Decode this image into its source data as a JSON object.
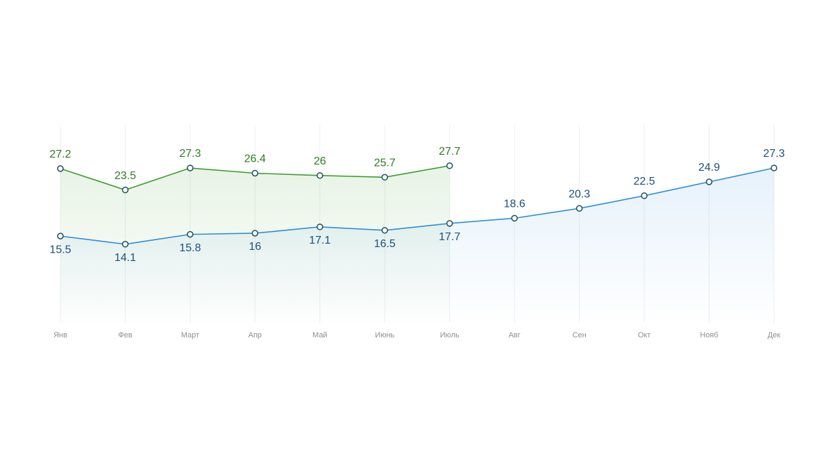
{
  "chart_data": {
    "type": "line",
    "categories": [
      "Янв",
      "Фев",
      "Март",
      "Апр",
      "Май",
      "Июнь",
      "Июль",
      "Авг",
      "Сен",
      "Окт",
      "Нояб",
      "Дек"
    ],
    "series": [
      {
        "name": null,
        "color": "#3a9e2a",
        "label_color": "#2f7a22",
        "values": [
          27.2,
          23.5,
          27.3,
          26.4,
          26,
          25.7,
          27.7,
          null,
          null,
          null,
          null,
          null
        ]
      },
      {
        "name": null,
        "color": "#2b8fdc",
        "label_color": "#1e4f7a",
        "values": [
          15.5,
          14.1,
          15.8,
          16,
          17.1,
          16.5,
          17.7,
          18.6,
          20.3,
          22.5,
          24.9,
          27.3
        ]
      }
    ],
    "ylim": [
      0,
      35
    ],
    "grid": true
  }
}
